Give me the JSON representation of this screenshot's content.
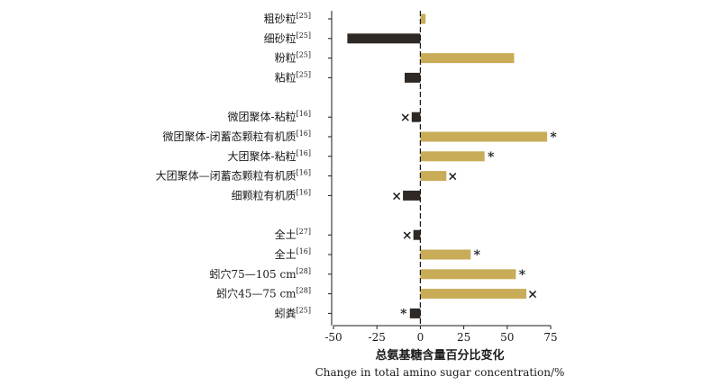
{
  "chart_data": {
    "type": "bar",
    "orientation": "horizontal",
    "xlabel_cn": "总氨基糖含量百分比变化",
    "xlabel_en": "Change in total amino sugar concentration/%",
    "xlim": [
      -50,
      75
    ],
    "xticks": [
      "-50",
      "-25",
      "0",
      "25",
      "50",
      "75"
    ],
    "grid": false,
    "legend": "none",
    "colors": {
      "positive": "#c8ac58",
      "negative": "#2e2924",
      "axis": "#1a1a1a"
    },
    "groups": [
      [
        {
          "label": "粗砂粒",
          "ref": "[25]",
          "value": 3,
          "marker": ""
        },
        {
          "label": "细砂粒",
          "ref": "[25]",
          "value": -42,
          "marker": ""
        },
        {
          "label": "粉粒",
          "ref": "[25]",
          "value": 54,
          "marker": ""
        },
        {
          "label": "粘粒",
          "ref": "[25]",
          "value": -9,
          "marker": ""
        }
      ],
      [
        {
          "label": "微团聚体-粘粒",
          "ref": "[16]",
          "value": -5,
          "marker": "×"
        },
        {
          "label": "微团聚体-闭蓄态颗粒有机质",
          "ref": "[16]",
          "value": 73,
          "marker": "*"
        },
        {
          "label": "大团聚体-粘粒",
          "ref": "[16]",
          "value": 37,
          "marker": "*"
        },
        {
          "label": "大团聚体—闭蓄态颗粒有机质",
          "ref": "[16]",
          "value": 15,
          "marker": "×"
        },
        {
          "label": "细颗粒有机质",
          "ref": "[16]",
          "value": -10,
          "marker": "×"
        }
      ],
      [
        {
          "label": "全土",
          "ref": "[27]",
          "value": -4,
          "marker": "×"
        },
        {
          "label": "全土",
          "ref": "[16]",
          "value": 29,
          "marker": "*"
        },
        {
          "label": "蚓穴75—105 cm",
          "ref": "[28]",
          "value": 55,
          "marker": "*"
        },
        {
          "label": "蚓穴45—75 cm",
          "ref": "[28]",
          "value": 61,
          "marker": "×"
        },
        {
          "label": "蚓粪",
          "ref": "[25]",
          "value": -6,
          "marker": "*"
        }
      ]
    ]
  }
}
